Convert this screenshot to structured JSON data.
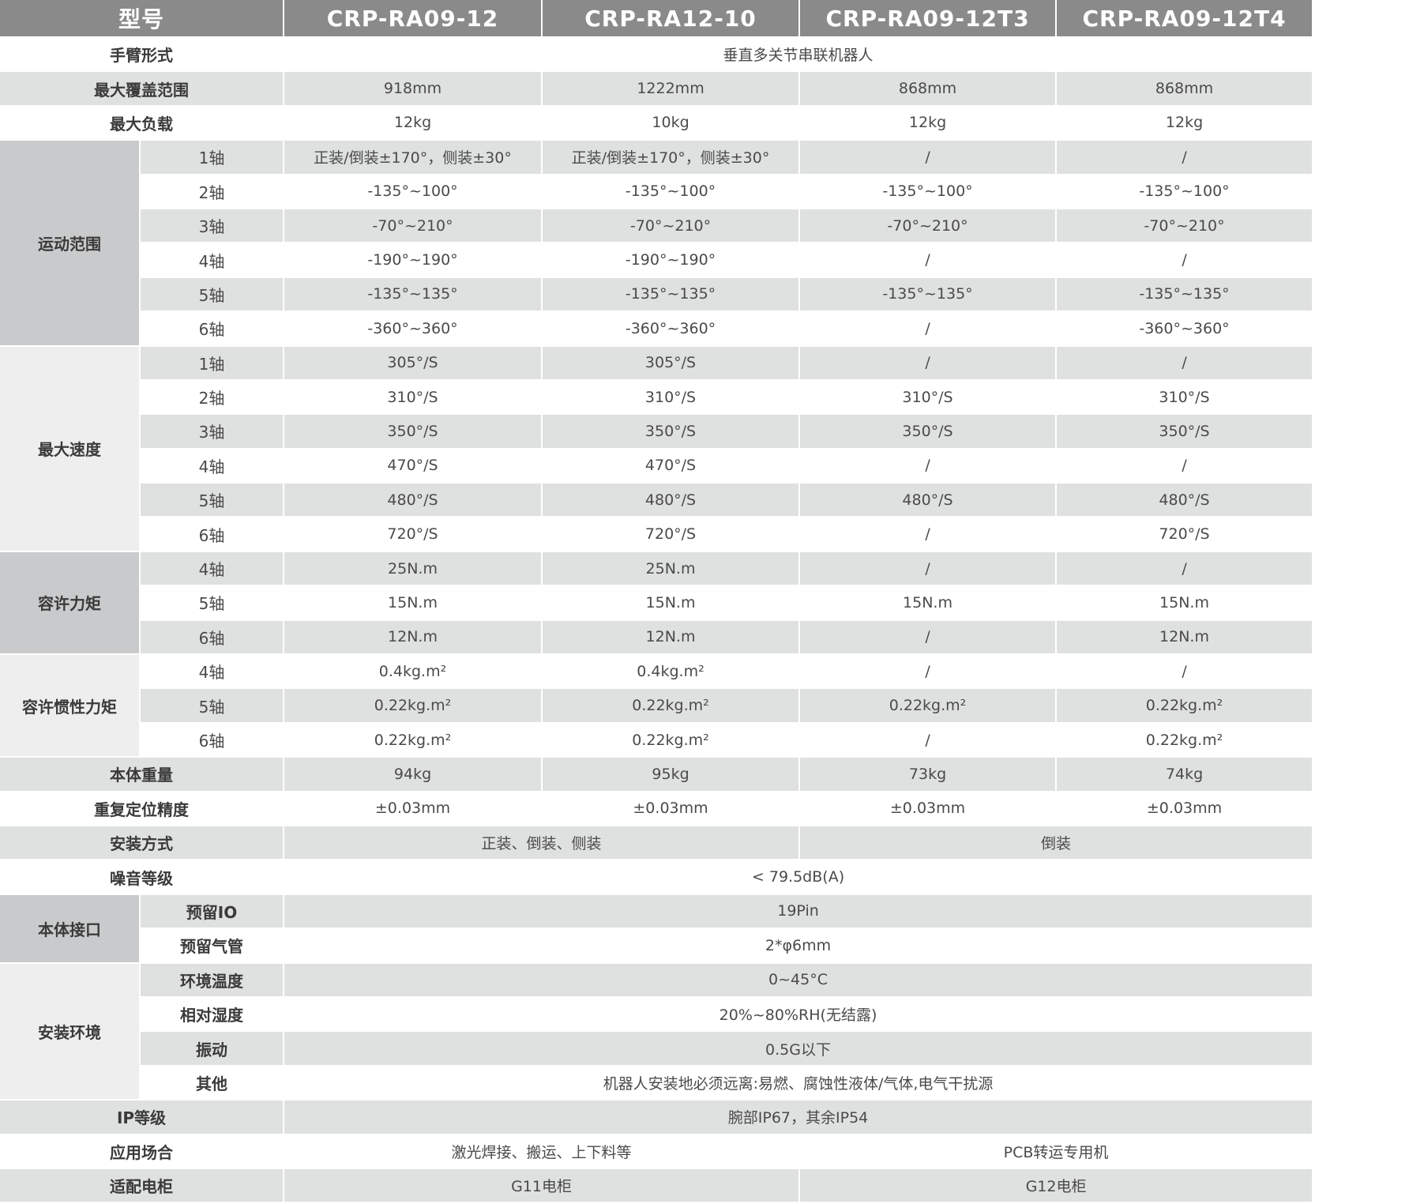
{
  "header": [
    "型号",
    "CRP-RA09-12",
    "CRP-RA12-10",
    "CRP-RA09-12T3",
    "CRP-RA09-12T4"
  ],
  "sections": [
    {
      "label": "手臂形式",
      "cells": [
        "垂直多关节串联机器人"
      ]
    },
    {
      "label": "最大覆盖范围",
      "cells": [
        "918mm",
        "1222mm",
        "868mm",
        "868mm"
      ]
    },
    {
      "label": "最大负载",
      "cells": [
        "12kg",
        "10kg",
        "12kg",
        "12kg"
      ]
    },
    {
      "group": "运动范围",
      "shade": "dark",
      "items": [
        {
          "sub": "1轴",
          "cells": [
            "正装/倒装±170°，侧装±30°",
            "正装/倒装±170°，侧装±30°",
            "/",
            "/"
          ]
        },
        {
          "sub": "2轴",
          "cells": [
            "-135°~100°",
            "-135°~100°",
            "-135°~100°",
            "-135°~100°"
          ]
        },
        {
          "sub": "3轴",
          "cells": [
            "-70°~210°",
            "-70°~210°",
            "-70°~210°",
            "-70°~210°"
          ]
        },
        {
          "sub": "4轴",
          "cells": [
            "-190°~190°",
            "-190°~190°",
            "/",
            "/"
          ]
        },
        {
          "sub": "5轴",
          "cells": [
            "-135°~135°",
            "-135°~135°",
            "-135°~135°",
            "-135°~135°"
          ]
        },
        {
          "sub": "6轴",
          "cells": [
            "-360°~360°",
            "-360°~360°",
            "/",
            "-360°~360°"
          ]
        }
      ]
    },
    {
      "group": "最大速度",
      "shade": "light",
      "items": [
        {
          "sub": "1轴",
          "cells": [
            "305°/S",
            "305°/S",
            "/",
            "/"
          ]
        },
        {
          "sub": "2轴",
          "cells": [
            "310°/S",
            "310°/S",
            "310°/S",
            "310°/S"
          ]
        },
        {
          "sub": "3轴",
          "cells": [
            "350°/S",
            "350°/S",
            "350°/S",
            "350°/S"
          ]
        },
        {
          "sub": "4轴",
          "cells": [
            "470°/S",
            "470°/S",
            "/",
            "/"
          ]
        },
        {
          "sub": "5轴",
          "cells": [
            "480°/S",
            "480°/S",
            "480°/S",
            "480°/S"
          ]
        },
        {
          "sub": "6轴",
          "cells": [
            "720°/S",
            "720°/S",
            "/",
            "720°/S"
          ]
        }
      ]
    },
    {
      "group": "容许力矩",
      "shade": "dark",
      "items": [
        {
          "sub": "4轴",
          "cells": [
            "25N.m",
            "25N.m",
            "/",
            "/"
          ]
        },
        {
          "sub": "5轴",
          "cells": [
            "15N.m",
            "15N.m",
            "15N.m",
            "15N.m"
          ]
        },
        {
          "sub": "6轴",
          "cells": [
            "12N.m",
            "12N.m",
            "/",
            "12N.m"
          ]
        }
      ]
    },
    {
      "group": "容许惯性力矩",
      "shade": "light",
      "items": [
        {
          "sub": "4轴",
          "cells": [
            "0.4kg.m²",
            "0.4kg.m²",
            "/",
            "/"
          ]
        },
        {
          "sub": "5轴",
          "cells": [
            "0.22kg.m²",
            "0.22kg.m²",
            "0.22kg.m²",
            "0.22kg.m²"
          ]
        },
        {
          "sub": "6轴",
          "cells": [
            "0.22kg.m²",
            "0.22kg.m²",
            "/",
            "0.22kg.m²"
          ]
        }
      ]
    },
    {
      "label": "本体重量",
      "cells": [
        "94kg",
        "95kg",
        "73kg",
        "74kg"
      ]
    },
    {
      "label": "重复定位精度",
      "cells": [
        "±0.03mm",
        "±0.03mm",
        "±0.03mm",
        "±0.03mm"
      ]
    },
    {
      "label": "安装方式",
      "cells": [
        "正装、倒装、侧装",
        "倒装"
      ]
    },
    {
      "label": "噪音等级",
      "cells": [
        "< 79.5dB(A)"
      ]
    },
    {
      "group": "本体接口",
      "shade": "dark",
      "boldSub": true,
      "items": [
        {
          "sub": "预留IO",
          "cells": [
            "19Pin"
          ]
        },
        {
          "sub": "预留气管",
          "cells": [
            "2*φ6mm"
          ]
        }
      ]
    },
    {
      "group": "安装环境",
      "shade": "light",
      "boldSub": true,
      "items": [
        {
          "sub": "环境温度",
          "cells": [
            "0~45°C"
          ]
        },
        {
          "sub": "相对湿度",
          "cells": [
            "20%~80%RH(无结露)"
          ]
        },
        {
          "sub": "振动",
          "cells": [
            "0.5G以下"
          ]
        },
        {
          "sub": "其他",
          "cells": [
            "机器人安装地必须远离:易燃、腐蚀性液体/气体,电气干扰源"
          ]
        }
      ]
    },
    {
      "label": "IP等级",
      "cells": [
        "腕部IP67，其余IP54"
      ]
    },
    {
      "label": "应用场合",
      "cells": [
        "激光焊接、搬运、上下料等",
        "PCB转运专用机"
      ]
    },
    {
      "label": "适配电柜",
      "cells": [
        "G11电柜",
        "G12电柜"
      ]
    }
  ]
}
